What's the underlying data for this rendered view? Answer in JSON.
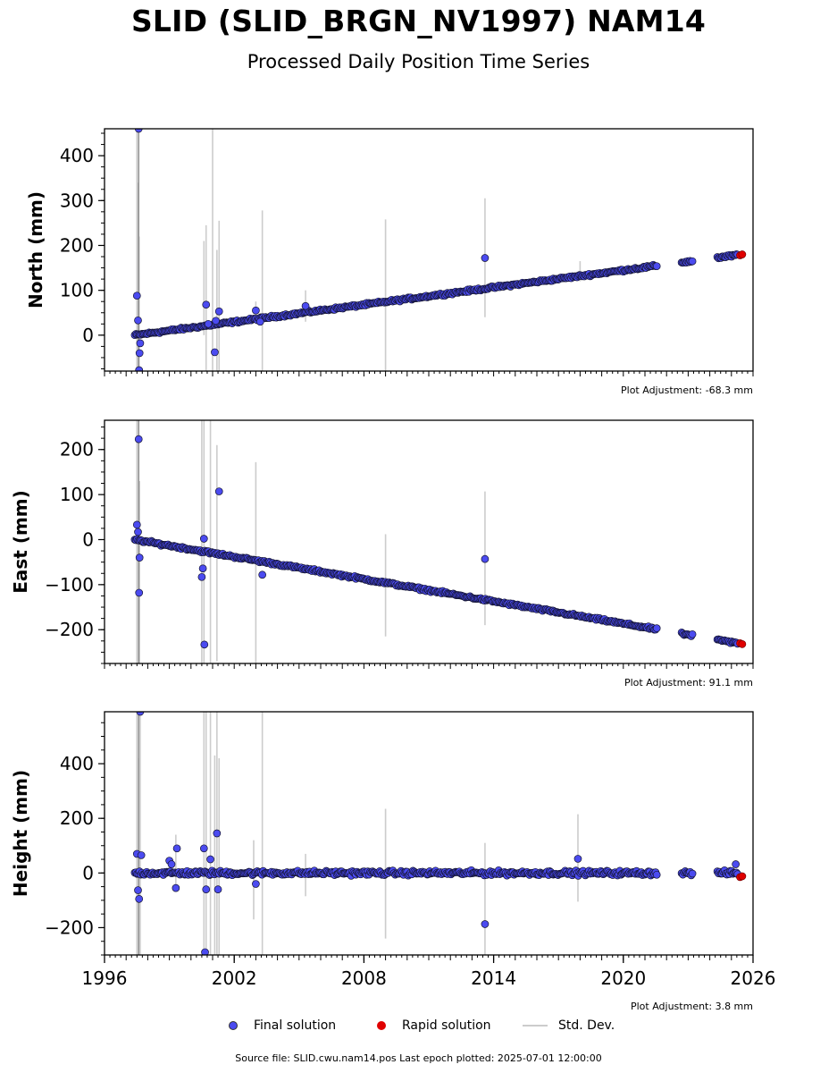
{
  "header": {
    "title": "SLID (SLID_BRGN_NV1997) NAM14",
    "subtitle": "Processed Daily Position Time Series"
  },
  "legend": {
    "final": "Final solution",
    "rapid": "Rapid solution",
    "std": "Std. Dev."
  },
  "footer": {
    "source": "Source file: SLID.cwu.nam14.pos  Last epoch plotted: 2025-07-01 12:00:00"
  },
  "colors": {
    "final": "#4b4bf0",
    "final_edge": "#141432",
    "rapid": "#e00000",
    "std_dev": "#cccccc"
  },
  "chart_data": [
    {
      "type": "scatter",
      "ylabel": "North (mm)",
      "xlim": [
        1996,
        2026
      ],
      "ylim": [
        -80,
        460
      ],
      "yticks": [
        0,
        100,
        200,
        300,
        400
      ],
      "ytick_labels": [
        "0",
        "100",
        "200",
        "300",
        "400"
      ],
      "adjustment": "Plot Adjustment: -68.3 mm",
      "trend": {
        "x": [
          1997.4,
          2025.5
        ],
        "y": [
          0,
          180
        ]
      },
      "gaps": [
        [
          2021.6,
          2022.6
        ],
        [
          2023.2,
          2024.3
        ]
      ],
      "series": [
        {
          "name": "Final solution",
          "x": [
            1997.5,
            1997.55,
            1997.58,
            1997.6,
            1997.62,
            1997.65,
            2000.7,
            2000.8,
            2001.1,
            2001.15,
            2001.3,
            2003.0,
            2003.2,
            2005.3,
            2013.6
          ],
          "y": [
            88,
            33,
            460,
            -78,
            -40,
            -18,
            68,
            25,
            -38,
            32,
            53,
            55,
            30,
            65,
            172
          ]
        },
        {
          "name": "Rapid solution",
          "x": [
            2025.4,
            2025.5
          ],
          "y": [
            178,
            180
          ]
        }
      ],
      "std_dev": {
        "x": [
          1997.5,
          1997.55,
          1997.6,
          2000.6,
          2000.7,
          2001.0,
          2001.2,
          2001.3,
          2003.0,
          2003.3,
          2005.3,
          2009.0,
          2013.6,
          2018.0
        ],
        "low": [
          -80,
          -80,
          -80,
          0,
          -80,
          -80,
          -80,
          -80,
          40,
          -80,
          30,
          -80,
          40,
          120
        ],
        "high": [
          460,
          340,
          220,
          210,
          245,
          460,
          190,
          255,
          75,
          278,
          100,
          258,
          305,
          165
        ]
      }
    },
    {
      "type": "scatter",
      "ylabel": "East (mm)",
      "xlim": [
        1996,
        2026
      ],
      "ylim": [
        -275,
        265
      ],
      "yticks": [
        -200,
        -100,
        0,
        100,
        200
      ],
      "ytick_labels": [
        "−200",
        "−100",
        "0",
        "100",
        "200"
      ],
      "adjustment": "Plot Adjustment: 91.1 mm",
      "trend": {
        "x": [
          1997.4,
          2025.5
        ],
        "y": [
          0,
          -232
        ]
      },
      "gaps": [
        [
          2021.6,
          2022.6
        ],
        [
          2023.2,
          2024.3
        ]
      ],
      "series": [
        {
          "name": "Final solution",
          "x": [
            1997.5,
            1997.55,
            1997.58,
            1997.6,
            1997.62,
            2000.5,
            2000.55,
            2000.6,
            2000.62,
            2001.3,
            2003.3,
            2013.6
          ],
          "y": [
            33,
            17,
            223,
            -118,
            -40,
            -83,
            -64,
            2,
            -233,
            107,
            -78,
            -43
          ]
        },
        {
          "name": "Rapid solution",
          "x": [
            2025.4,
            2025.5
          ],
          "y": [
            -230,
            -232
          ]
        }
      ],
      "std_dev": {
        "x": [
          1997.5,
          1997.58,
          1997.62,
          2000.5,
          2000.6,
          2000.9,
          2001.2,
          2003.0,
          2009.0,
          2013.6
        ],
        "low": [
          -275,
          -275,
          -275,
          -275,
          -275,
          -275,
          -270,
          -275,
          -215,
          -190
        ],
        "high": [
          265,
          265,
          130,
          265,
          265,
          265,
          210,
          172,
          12,
          107
        ]
      }
    },
    {
      "type": "scatter",
      "ylabel": "Height (mm)",
      "xlabel": "",
      "xlim": [
        1996,
        2026
      ],
      "ylim": [
        -300,
        590
      ],
      "yticks": [
        -200,
        0,
        200,
        400
      ],
      "ytick_labels": [
        "−200",
        "0",
        "200",
        "400"
      ],
      "xticks": [
        1996,
        2002,
        2008,
        2014,
        2020,
        2026
      ],
      "xtick_labels": [
        "1996",
        "2002",
        "2008",
        "2014",
        "2020",
        "2026"
      ],
      "adjustment": "Plot Adjustment: 3.8 mm",
      "trend": {
        "x": [
          1997.4,
          2025.5
        ],
        "y": [
          0,
          0
        ]
      },
      "gaps": [
        [
          2021.6,
          2022.6
        ],
        [
          2023.2,
          2024.3
        ]
      ],
      "series": [
        {
          "name": "Final solution",
          "x": [
            1997.5,
            1997.55,
            1997.6,
            1997.65,
            1997.7,
            1999.0,
            1999.1,
            1999.3,
            1999.35,
            2000.6,
            2000.65,
            2000.7,
            2000.9,
            2001.2,
            2001.25,
            2003.0,
            2013.6,
            2017.9,
            2025.2
          ],
          "y": [
            70,
            -63,
            -95,
            590,
            65,
            45,
            32,
            -55,
            90,
            90,
            -290,
            -60,
            50,
            145,
            -60,
            -40,
            -187,
            52,
            32
          ]
        },
        {
          "name": "Rapid solution",
          "x": [
            2025.4,
            2025.5
          ],
          "y": [
            -15,
            -12
          ]
        }
      ],
      "std_dev": {
        "x": [
          1997.5,
          1997.58,
          1997.65,
          1999.3,
          2000.6,
          2000.7,
          2000.9,
          2001.1,
          2001.2,
          2001.3,
          2002.9,
          2003.3,
          2005.3,
          2009.0,
          2013.6,
          2017.9
        ],
        "low": [
          -300,
          -300,
          -300,
          -50,
          -300,
          -300,
          -300,
          -300,
          -300,
          -300,
          -170,
          -300,
          -85,
          -240,
          -300,
          -105
        ],
        "high": [
          590,
          420,
          590,
          140,
          590,
          590,
          590,
          430,
          590,
          420,
          120,
          590,
          70,
          235,
          110,
          215
        ]
      }
    }
  ]
}
